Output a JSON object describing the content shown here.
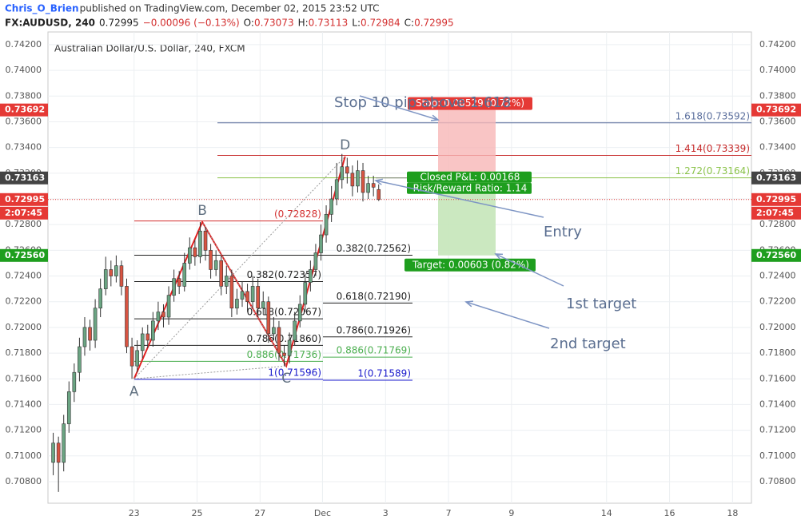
{
  "header": {
    "author": "Chris_O_Brien",
    "published": " published on TradingView.com, December 02, 2015 23:52 UTC",
    "symbol": "FX:AUDUSD, 240",
    "change": "−0.00096 (−0.13%)",
    "ohlc_labels": [
      "O:",
      "H:",
      "L:",
      "C:"
    ]
  },
  "chart_data": {
    "type": "candlestick",
    "title": "Australian Dollar/U.S. Dollar, 240, FXCM",
    "open": [
      0.7095,
      0.711,
      0.7095,
      0.7125,
      0.715,
      0.7165,
      0.7185,
      0.72,
      0.719,
      0.7215,
      0.723,
      0.7245,
      0.724,
      0.7248,
      0.7232,
      0.7185,
      0.717,
      0.7182,
      0.7195,
      0.719,
      0.7205,
      0.7212,
      0.7208,
      0.7225,
      0.7238,
      0.7232,
      0.725,
      0.7262,
      0.7255,
      0.7275,
      0.726,
      0.7245,
      0.7252,
      0.7232,
      0.724,
      0.7215,
      0.7222,
      0.7228,
      0.722,
      0.7232,
      0.7215,
      0.722,
      0.7195,
      0.72,
      0.718,
      0.7178,
      0.719,
      0.7205,
      0.7218,
      0.7235,
      0.7245,
      0.7258,
      0.7272,
      0.7288,
      0.73,
      0.7315,
      0.7325,
      0.732,
      0.731,
      0.7322,
      0.7305,
      0.7312,
      0.73073
    ],
    "high": [
      0.7118,
      0.7115,
      0.7132,
      0.7158,
      0.7172,
      0.7192,
      0.7208,
      0.7206,
      0.7222,
      0.7238,
      0.7255,
      0.7252,
      0.7256,
      0.7252,
      0.7238,
      0.7192,
      0.719,
      0.72,
      0.7202,
      0.7212,
      0.722,
      0.7218,
      0.7232,
      0.7245,
      0.7244,
      0.7258,
      0.727,
      0.7268,
      0.7282,
      0.7278,
      0.7265,
      0.726,
      0.7256,
      0.7248,
      0.7245,
      0.723,
      0.7236,
      0.7234,
      0.724,
      0.7238,
      0.7228,
      0.7224,
      0.7208,
      0.7205,
      0.7186,
      0.7196,
      0.7212,
      0.7225,
      0.7242,
      0.7252,
      0.7265,
      0.728,
      0.7295,
      0.731,
      0.7328,
      0.7335,
      0.7332,
      0.7326,
      0.733,
      0.7328,
      0.7318,
      0.7318,
      0.73113
    ],
    "low": [
      0.7085,
      0.7072,
      0.7088,
      0.7118,
      0.7142,
      0.7158,
      0.7178,
      0.7182,
      0.7184,
      0.7208,
      0.7225,
      0.7232,
      0.7235,
      0.7225,
      0.718,
      0.716,
      0.7165,
      0.7176,
      0.7184,
      0.7185,
      0.7198,
      0.72,
      0.7202,
      0.722,
      0.7226,
      0.7228,
      0.7245,
      0.7248,
      0.725,
      0.7252,
      0.7238,
      0.724,
      0.7225,
      0.7226,
      0.7208,
      0.721,
      0.7216,
      0.7212,
      0.7215,
      0.7208,
      0.721,
      0.7188,
      0.719,
      0.7174,
      0.717,
      0.7172,
      0.7186,
      0.72,
      0.7212,
      0.7228,
      0.724,
      0.7252,
      0.7266,
      0.7282,
      0.7295,
      0.7308,
      0.7312,
      0.7302,
      0.7305,
      0.7298,
      0.73,
      0.7302,
      0.72984
    ],
    "close": [
      0.711,
      0.7095,
      0.7125,
      0.715,
      0.7165,
      0.7185,
      0.72,
      0.719,
      0.7215,
      0.723,
      0.7245,
      0.724,
      0.7248,
      0.7232,
      0.7185,
      0.717,
      0.7182,
      0.7195,
      0.719,
      0.7205,
      0.7212,
      0.7208,
      0.7225,
      0.7238,
      0.7232,
      0.725,
      0.7262,
      0.7255,
      0.7275,
      0.726,
      0.7245,
      0.7252,
      0.7232,
      0.724,
      0.7215,
      0.7222,
      0.7228,
      0.722,
      0.7232,
      0.7215,
      0.722,
      0.7195,
      0.72,
      0.718,
      0.7178,
      0.719,
      0.7205,
      0.7218,
      0.7235,
      0.7245,
      0.7258,
      0.7272,
      0.7288,
      0.73,
      0.7315,
      0.7325,
      0.732,
      0.731,
      0.7322,
      0.7305,
      0.7312,
      0.73091,
      0.72995
    ],
    "up_color": "#6ba583",
    "down_color": "#d75442",
    "xlim": [
      -1,
      133
    ],
    "xticks": [
      {
        "value": 15.4,
        "label": "23"
      },
      {
        "value": 27.4,
        "label": "25"
      },
      {
        "value": 39.4,
        "label": "27"
      },
      {
        "value": 51.3,
        "label": "Dec"
      },
      {
        "value": 63.3,
        "label": "3"
      },
      {
        "value": 75.3,
        "label": "7"
      },
      {
        "value": 87.3,
        "label": "9"
      },
      {
        "value": 105.4,
        "label": "14"
      },
      {
        "value": 117.4,
        "label": "16"
      },
      {
        "value": 129.4,
        "label": "18"
      }
    ],
    "ylim": [
      0.70632,
      0.74299
    ],
    "yticks": [
      {
        "value": 0.708,
        "label": "0.70800"
      },
      {
        "value": 0.71,
        "label": "0.71000"
      },
      {
        "value": 0.712,
        "label": "0.71200"
      },
      {
        "value": 0.714,
        "label": "0.71400"
      },
      {
        "value": 0.716,
        "label": "0.71600"
      },
      {
        "value": 0.718,
        "label": "0.71800"
      },
      {
        "value": 0.72,
        "label": "0.72000"
      },
      {
        "value": 0.722,
        "label": "0.72200"
      },
      {
        "value": 0.724,
        "label": "0.72400"
      },
      {
        "value": 0.726,
        "label": "0.72600"
      },
      {
        "value": 0.728,
        "label": "0.72800"
      },
      {
        "value": 0.73,
        "label": "0.73000"
      },
      {
        "value": 0.732,
        "label": "0.73200"
      },
      {
        "value": 0.734,
        "label": "0.73400"
      },
      {
        "value": 0.736,
        "label": "0.73600"
      },
      {
        "value": 0.738,
        "label": "0.73800"
      },
      {
        "value": 0.74,
        "label": "0.74000"
      },
      {
        "value": 0.742,
        "label": "0.74200"
      }
    ],
    "grid": true,
    "countdown": "2:07:45",
    "pattern": {
      "labels": [
        "A",
        "B",
        "C",
        "D"
      ],
      "bars": [
        15.4,
        28.4,
        44.4,
        55.6
      ],
      "prices": [
        0.716,
        0.7282,
        0.717,
        0.7333
      ],
      "color": "#e02020"
    },
    "fib_left": [
      {
        "label": "(0.72828)",
        "price": 0.72828,
        "color": "#d32f2f"
      },
      {
        "label": "0.382(0.72357)",
        "price": 0.72357,
        "color": "#222222"
      },
      {
        "label": "0.618(0.72067)",
        "price": 0.72067,
        "color": "#222222"
      },
      {
        "label": "0.786(0.71860)",
        "price": 0.7186,
        "color": "#222222"
      },
      {
        "label": "0.886(0.71736)",
        "price": 0.71736,
        "color": "#4caf50"
      },
      {
        "label": "1(0.71596)",
        "price": 0.71596,
        "color": "#1a1acc"
      }
    ],
    "fib_right": [
      {
        "label": "0.382(0.72562)",
        "price": 0.72562,
        "color": "#222222"
      },
      {
        "label": "0.618(0.72190)",
        "price": 0.7219,
        "color": "#222222"
      },
      {
        "label": "0.786(0.71926)",
        "price": 0.71926,
        "color": "#222222"
      },
      {
        "label": "0.886(0.71769)",
        "price": 0.71769,
        "color": "#4caf50"
      },
      {
        "label": "1(0.71589)",
        "price": 0.71589,
        "color": "#1a1acc"
      }
    ],
    "fib_ext": [
      {
        "label": "1.618(0.73592)",
        "price": 0.73592,
        "color": "#5a6e9c"
      },
      {
        "label": "1.414(0.73339)",
        "price": 0.73339,
        "color": "#c62828"
      },
      {
        "label": "1.272(0.73164)",
        "price": 0.73164,
        "color": "#8bc34a"
      }
    ],
    "position": {
      "entry": 0.73163,
      "stop": 0.73692,
      "target": 0.7256,
      "target_label": "0.72560",
      "stop_text": "Stop: 0.00529 (0.72%)",
      "pnl_text": "Closed P&L: 0.00168",
      "rr_text": "Risk/Reward Ratio: 1.14",
      "target_text": "Target: 0.00603 (0.82%)"
    },
    "annotations": [
      "Stop 10 pip above 1.618",
      "Entry",
      "1st target",
      "2nd target"
    ]
  }
}
